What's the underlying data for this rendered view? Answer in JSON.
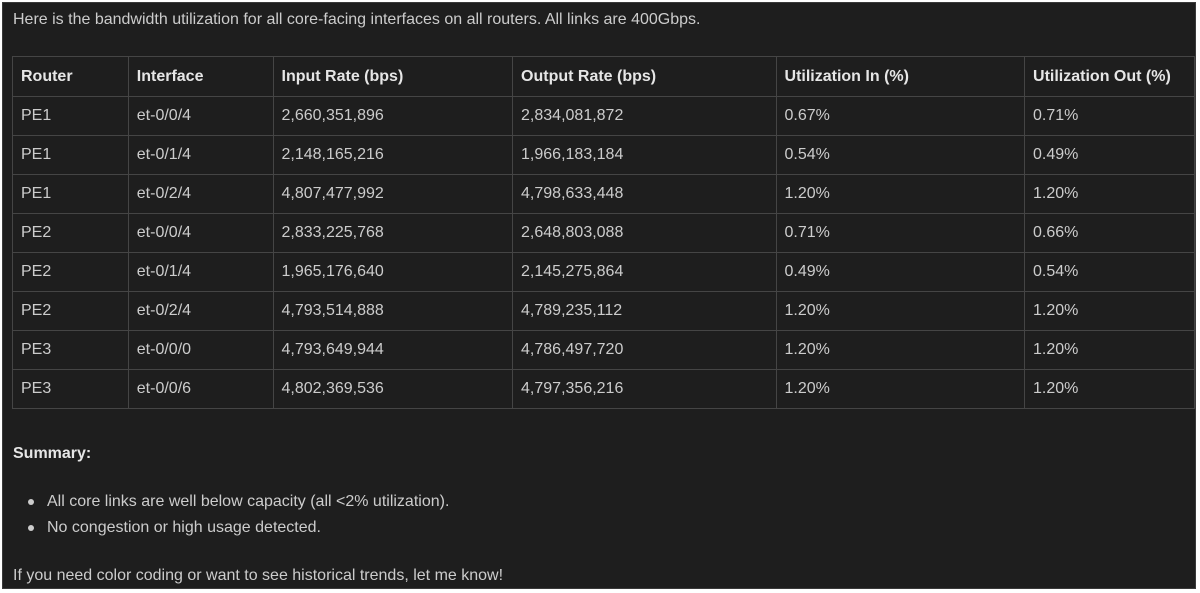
{
  "message": {
    "intro": "Here is the bandwidth utilization for all core-facing interfaces on all routers. All links are 400Gbps.",
    "table": {
      "headers": [
        "Router",
        "Interface",
        "Input Rate (bps)",
        "Output Rate (bps)",
        "Utilization In (%)",
        "Utilization Out (%)"
      ],
      "rows": [
        [
          "PE1",
          "et-0/0/4",
          "2,660,351,896",
          "2,834,081,872",
          "0.67%",
          "0.71%"
        ],
        [
          "PE1",
          "et-0/1/4",
          "2,148,165,216",
          "1,966,183,184",
          "0.54%",
          "0.49%"
        ],
        [
          "PE1",
          "et-0/2/4",
          "4,807,477,992",
          "4,798,633,448",
          "1.20%",
          "1.20%"
        ],
        [
          "PE2",
          "et-0/0/4",
          "2,833,225,768",
          "2,648,803,088",
          "0.71%",
          "0.66%"
        ],
        [
          "PE2",
          "et-0/1/4",
          "1,965,176,640",
          "2,145,275,864",
          "0.49%",
          "0.54%"
        ],
        [
          "PE2",
          "et-0/2/4",
          "4,793,514,888",
          "4,789,235,112",
          "1.20%",
          "1.20%"
        ],
        [
          "PE3",
          "et-0/0/0",
          "4,793,649,944",
          "4,786,497,720",
          "1.20%",
          "1.20%"
        ],
        [
          "PE3",
          "et-0/0/6",
          "4,802,369,536",
          "4,797,356,216",
          "1.20%",
          "1.20%"
        ]
      ]
    },
    "summary_title": "Summary:",
    "summary_items": [
      "All core links are well below capacity (all <2% utilization).",
      "No congestion or high usage detected."
    ],
    "closing": "If you need color coding or want to see historical trends, let me know!"
  },
  "colors": {
    "background": "#1e1e1e",
    "text": "#cccccc",
    "border": "#454545"
  }
}
